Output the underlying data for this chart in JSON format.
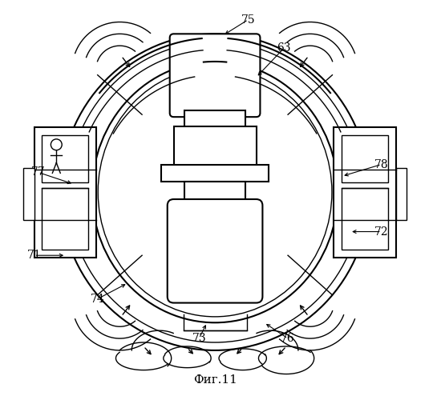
{
  "title": "Фиг.11",
  "background_color": "#ffffff",
  "line_color": "#000000",
  "figsize": [
    5.5,
    5.0
  ],
  "dpi": 100
}
